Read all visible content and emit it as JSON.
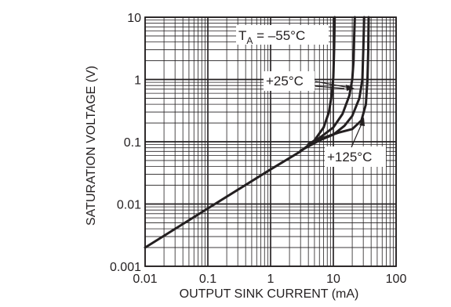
{
  "chart_data": {
    "type": "line",
    "title": "",
    "xlabel": "OUTPUT SINK CURRENT (mA)",
    "ylabel": "SATURATION VOLTAGE (V)",
    "xscale": "log",
    "yscale": "log",
    "xlim": [
      0.01,
      100
    ],
    "ylim": [
      0.001,
      10
    ],
    "x_ticks": [
      {
        "value": 0.01,
        "label": "0.01"
      },
      {
        "value": 0.1,
        "label": "0.1"
      },
      {
        "value": 1,
        "label": "1"
      },
      {
        "value": 10,
        "label": "10"
      },
      {
        "value": 100,
        "label": "100"
      }
    ],
    "y_ticks": [
      {
        "value": 0.001,
        "label": "0.001"
      },
      {
        "value": 0.01,
        "label": "0.01"
      },
      {
        "value": 0.1,
        "label": "0.1"
      },
      {
        "value": 1,
        "label": "1"
      },
      {
        "value": 10,
        "label": "10"
      }
    ],
    "grid": true,
    "series": [
      {
        "name": "–55°C",
        "points": [
          [
            0.01,
            0.002
          ],
          [
            0.1,
            0.0085
          ],
          [
            1,
            0.036
          ],
          [
            3,
            0.07
          ],
          [
            5,
            0.105
          ],
          [
            7,
            0.17
          ],
          [
            8.5,
            0.3
          ],
          [
            9.5,
            0.6
          ],
          [
            10,
            1.1
          ],
          [
            10.3,
            3
          ],
          [
            10.5,
            10
          ]
        ]
      },
      {
        "name": "+25°C",
        "points": [
          [
            4,
            0.092
          ],
          [
            6,
            0.115
          ],
          [
            10,
            0.17
          ],
          [
            14,
            0.28
          ],
          [
            18,
            0.55
          ],
          [
            20,
            1
          ],
          [
            21,
            2
          ],
          [
            21.5,
            5
          ],
          [
            22,
            10
          ]
        ]
      },
      {
        "name": "+125°C",
        "points": [
          [
            3,
            0.072
          ],
          [
            6,
            0.105
          ],
          [
            10,
            0.13
          ],
          [
            15,
            0.18
          ],
          [
            20,
            0.26
          ],
          [
            26,
            0.5
          ],
          [
            29,
            1
          ],
          [
            30,
            3
          ],
          [
            31,
            10
          ]
        ]
      },
      {
        "name": "",
        "points": [
          [
            6,
            0.11
          ],
          [
            12,
            0.14
          ],
          [
            20,
            0.16
          ],
          [
            28,
            0.22
          ],
          [
            33,
            0.4
          ],
          [
            35,
            1
          ],
          [
            36,
            3
          ],
          [
            36.5,
            10
          ]
        ]
      }
    ],
    "annotations": [
      {
        "id": "ta",
        "main": "T",
        "sub": "A",
        "rest": " = –55°C"
      },
      {
        "id": "t25",
        "text": "+25°C"
      },
      {
        "id": "t125",
        "text": "+125°C"
      }
    ]
  }
}
